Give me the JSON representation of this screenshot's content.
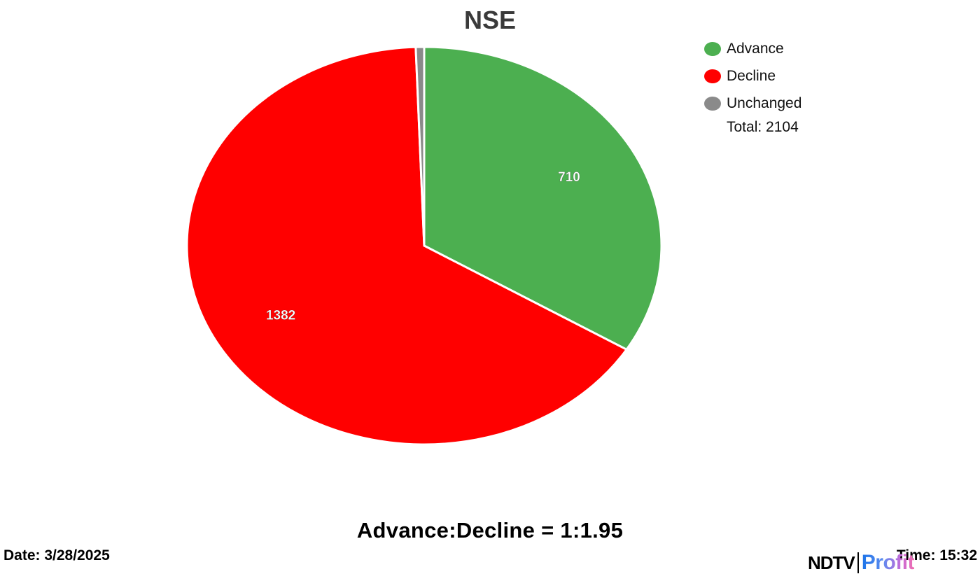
{
  "chart_data": {
    "type": "pie",
    "title": "NSE",
    "categories": [
      "Advance",
      "Decline",
      "Unchanged"
    ],
    "values": [
      710,
      1382,
      12
    ],
    "colors": [
      "#4caf50",
      "#ff0000",
      "#8a8a8a"
    ],
    "data_labels": [
      "710",
      "1382",
      ""
    ],
    "total_label": "Total: 2104",
    "legend_position": "top-right"
  },
  "footer": {
    "ratio": "Advance:Decline = 1:1.95",
    "date": "Date: 3/28/2025",
    "time": "Time: 15:32"
  },
  "brand": {
    "part1": "NDTV",
    "part2": "Profit"
  }
}
